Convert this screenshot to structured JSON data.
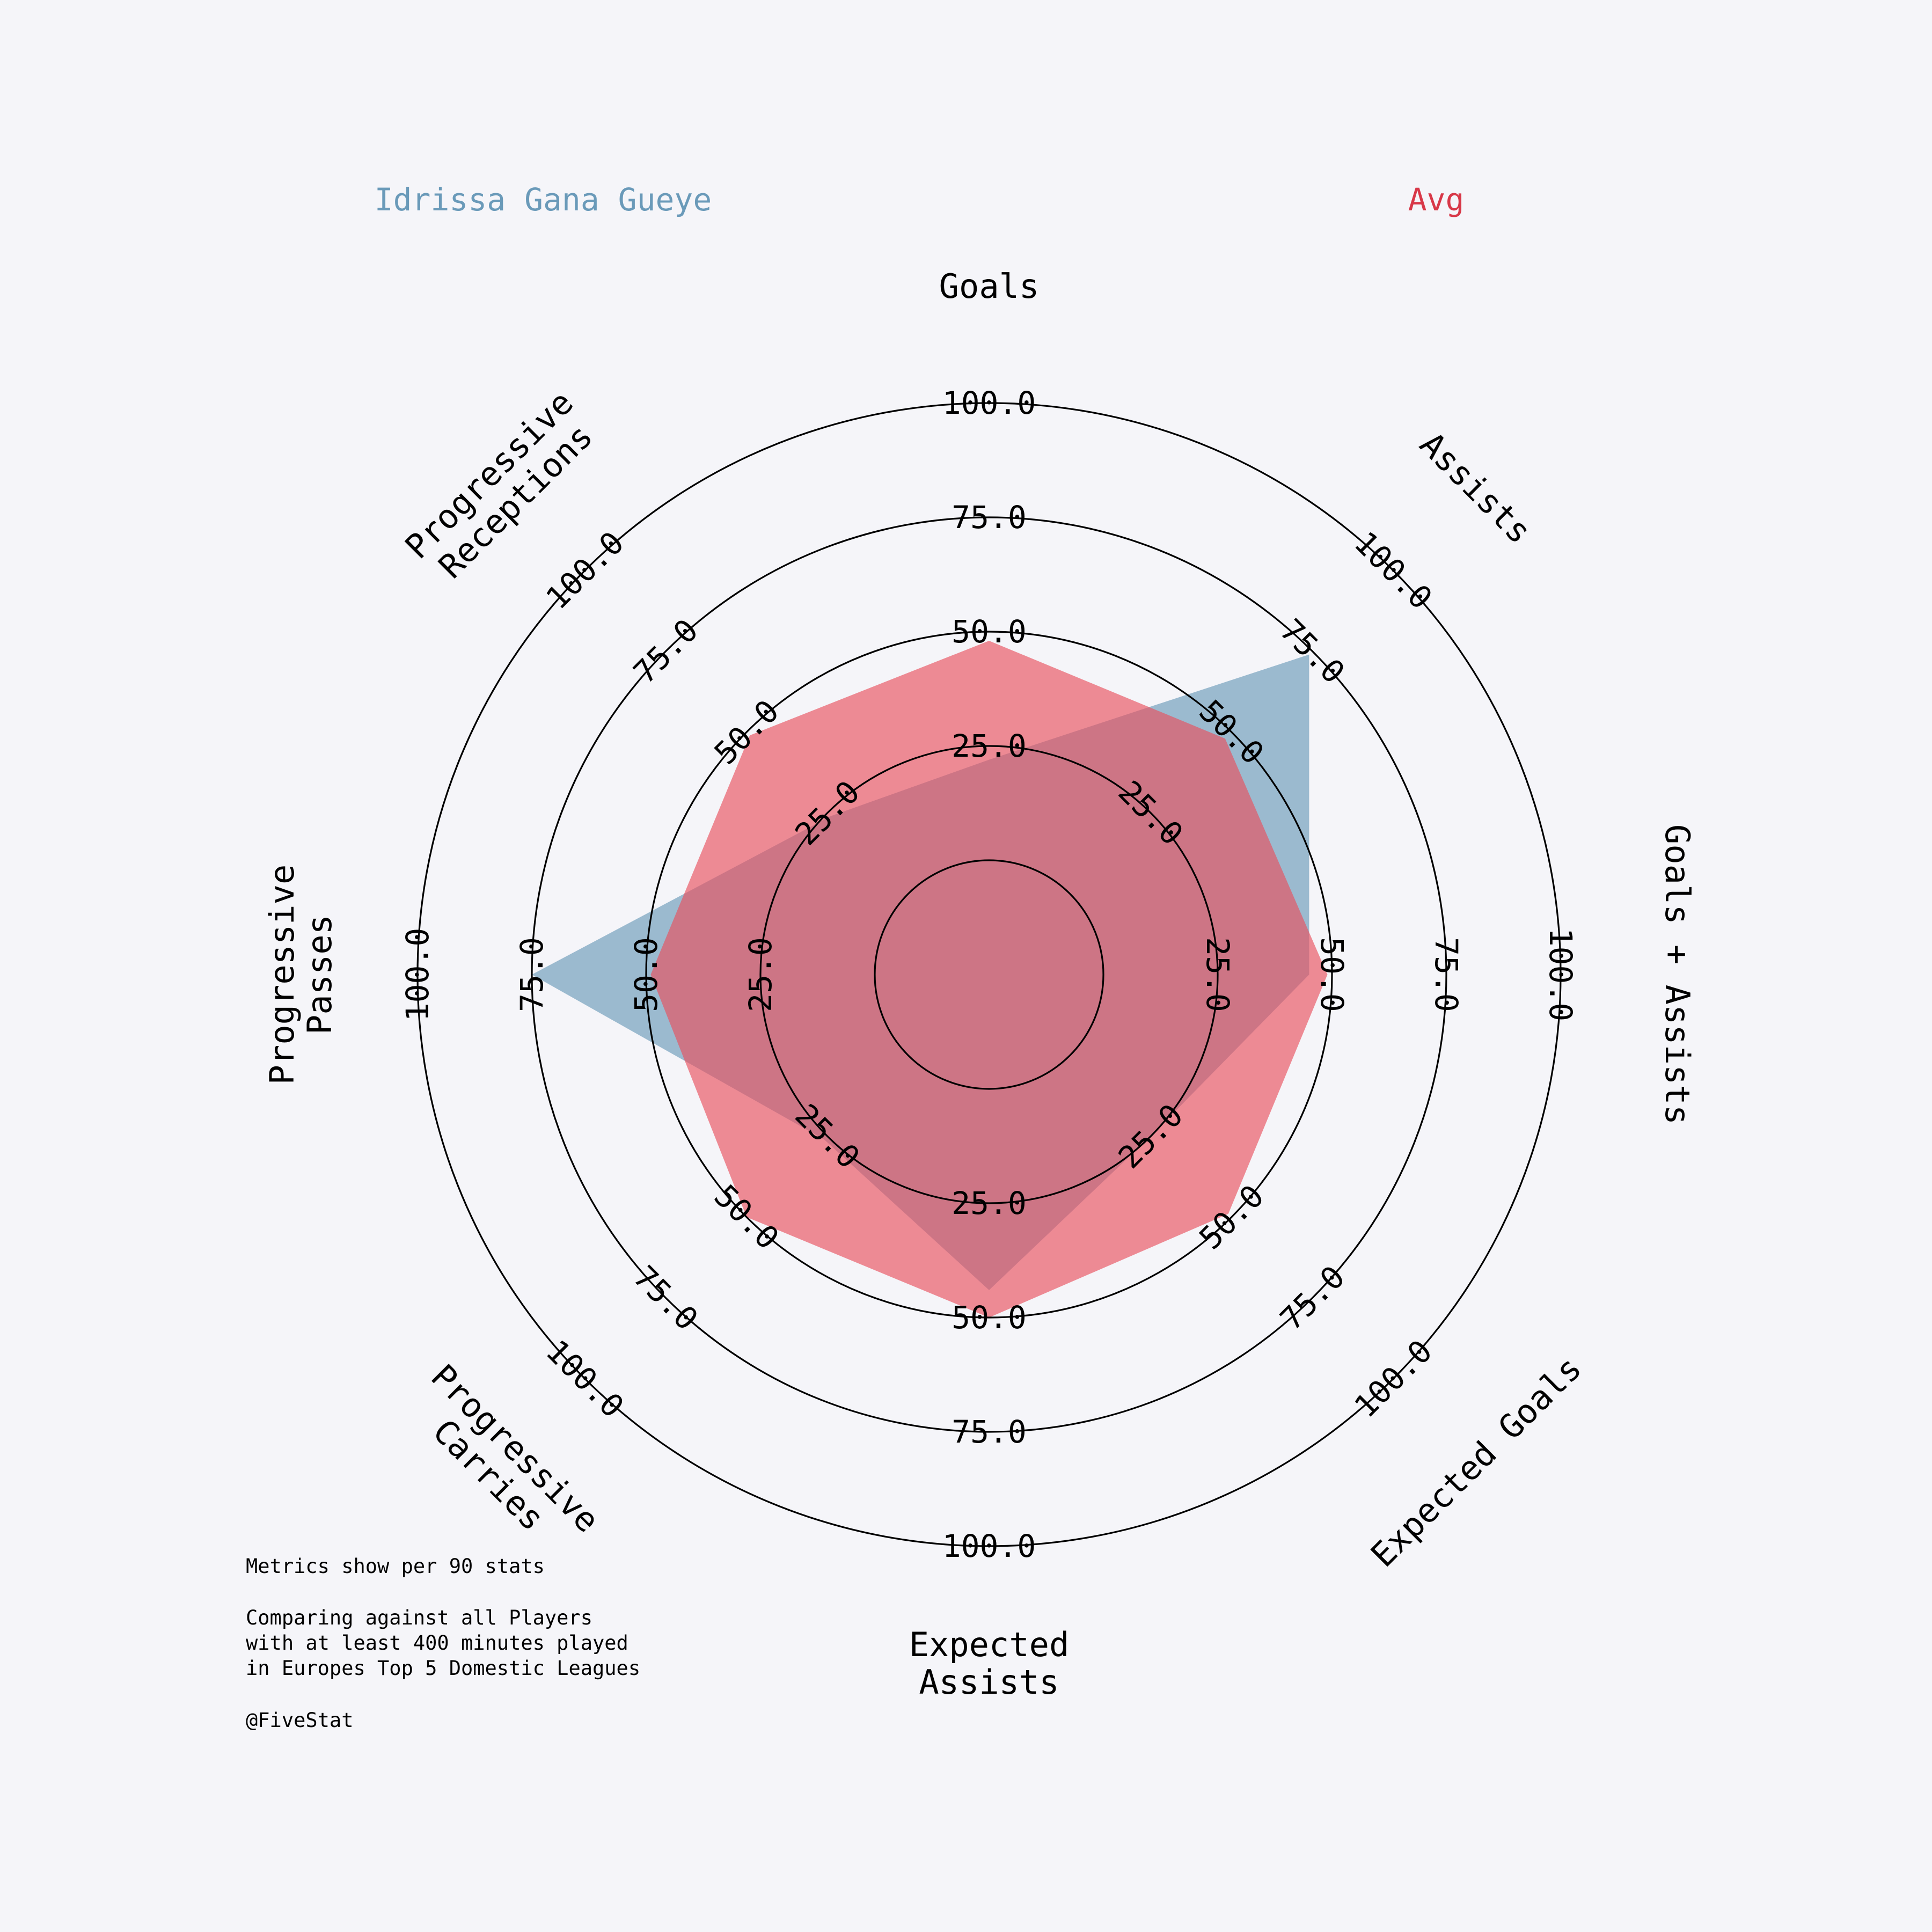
{
  "colors": {
    "background": "#f5f5f9",
    "player": "#6a9ab9",
    "average": "#e8505e",
    "grid": "#000000"
  },
  "legend": {
    "player_name": "Idrissa Gana Gueye",
    "average_name": "Avg"
  },
  "footnote": {
    "line1": "Metrics show per 90 stats",
    "line2": "Comparing against all Players",
    "line3": "with at least 400 minutes played",
    "line4": "in Europes Top 5 Domestic Leagues",
    "line5": "@FiveStat"
  },
  "chart_data": {
    "type": "radar",
    "axes": [
      {
        "label": [
          "Goals"
        ]
      },
      {
        "label": [
          "Assists"
        ]
      },
      {
        "label": [
          "Goals + Assists"
        ]
      },
      {
        "label": [
          "Expected Goals"
        ]
      },
      {
        "label": [
          "Expected",
          "Assists"
        ]
      },
      {
        "label": [
          "Progressive",
          "Carries"
        ]
      },
      {
        "label": [
          "Progressive",
          "Passes"
        ]
      },
      {
        "label": [
          "Progressive",
          "Receptions"
        ]
      }
    ],
    "range": [
      -25,
      100
    ],
    "ticks": [
      25,
      50,
      75,
      100
    ],
    "tick_labels": [
      "25.0",
      "50.0",
      "75.0",
      "100.0"
    ],
    "series": [
      {
        "name": "Idrissa Gana Gueye",
        "color": "#6a9ab9",
        "values": [
          22,
          74,
          45,
          25,
          44,
          26,
          75,
          24
        ]
      },
      {
        "name": "Avg",
        "color": "#e8505e",
        "values": [
          48,
          48,
          49,
          49,
          50,
          50,
          49,
          49
        ]
      }
    ]
  }
}
